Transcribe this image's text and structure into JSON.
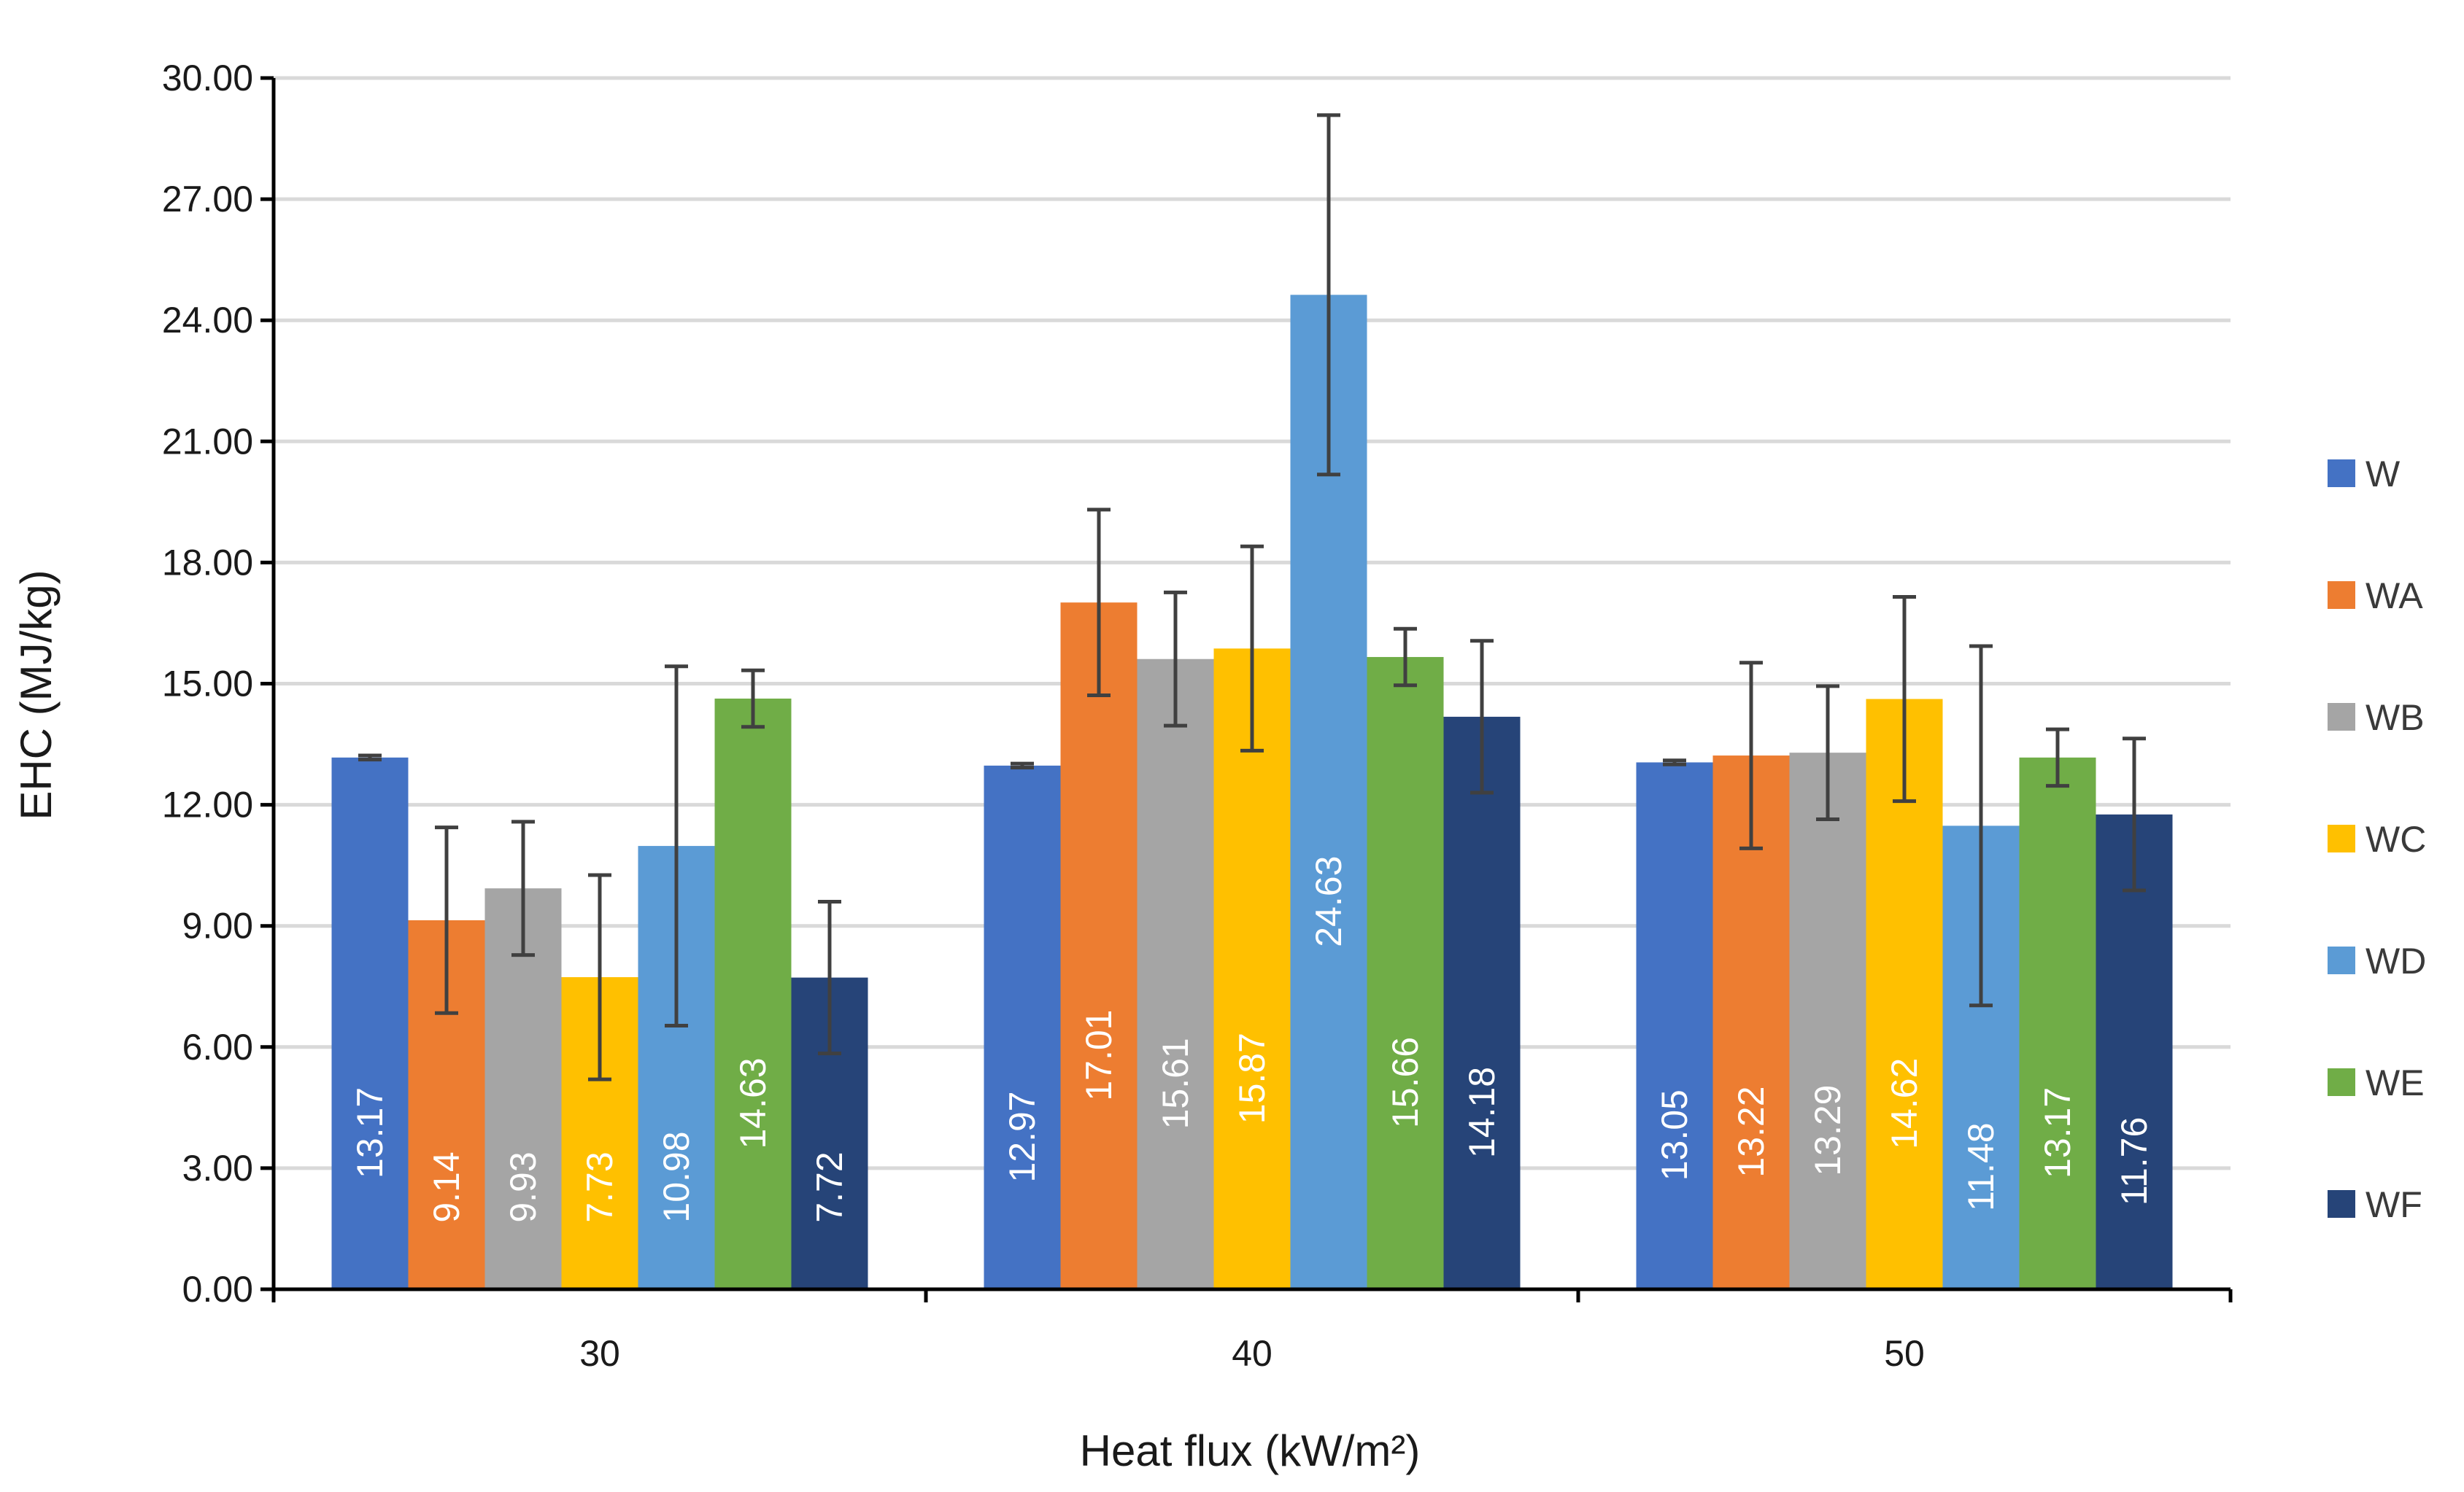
{
  "chart_data": {
    "type": "bar",
    "title": "",
    "xlabel": "Heat flux (kW/m²)",
    "ylabel": "EHC (MJ/kg)",
    "ylim": [
      0,
      30
    ],
    "yticks": [
      "0.00",
      "3.00",
      "6.00",
      "9.00",
      "12.00",
      "15.00",
      "18.00",
      "21.00",
      "24.00",
      "27.00",
      "30.00"
    ],
    "categories": [
      "30",
      "40",
      "50"
    ],
    "grid": true,
    "legend_position": "right",
    "series": [
      {
        "name": "W",
        "color": "#4472C4",
        "values": [
          13.17,
          12.97,
          13.05
        ],
        "labels": [
          "13.17",
          "12.97",
          "13.05"
        ],
        "errors": [
          0.05,
          0.05,
          0.05
        ]
      },
      {
        "name": "WA",
        "color": "#ED7D31",
        "values": [
          9.14,
          17.01,
          13.22
        ],
        "labels": [
          "9.14",
          "17.01",
          "13.22"
        ],
        "errors": [
          2.3,
          2.3,
          2.3
        ]
      },
      {
        "name": "WB",
        "color": "#A5A5A5",
        "values": [
          9.93,
          15.61,
          13.29
        ],
        "labels": [
          "9.93",
          "15.61",
          "13.29"
        ],
        "errors": [
          1.65,
          1.65,
          1.65
        ]
      },
      {
        "name": "WC",
        "color": "#FFC000",
        "values": [
          7.73,
          15.87,
          14.62
        ],
        "labels": [
          "7.73",
          "15.87",
          "14.62"
        ],
        "errors": [
          2.53,
          2.53,
          2.53
        ]
      },
      {
        "name": "WD",
        "color": "#5B9BD5",
        "values": [
          10.98,
          24.63,
          11.48
        ],
        "labels": [
          "10.98",
          "24.63",
          "11.48"
        ],
        "errors": [
          4.45,
          4.45,
          4.45
        ]
      },
      {
        "name": "WE",
        "color": "#70AD47",
        "values": [
          14.63,
          15.66,
          13.17
        ],
        "labels": [
          "14.63",
          "15.66",
          "13.17"
        ],
        "errors": [
          0.7,
          0.7,
          0.7
        ]
      },
      {
        "name": "WF",
        "color": "#264478",
        "values": [
          7.72,
          14.18,
          11.76
        ],
        "labels": [
          "7.72",
          "14.18",
          "11.76"
        ],
        "errors": [
          1.88,
          1.88,
          1.88
        ]
      }
    ]
  }
}
